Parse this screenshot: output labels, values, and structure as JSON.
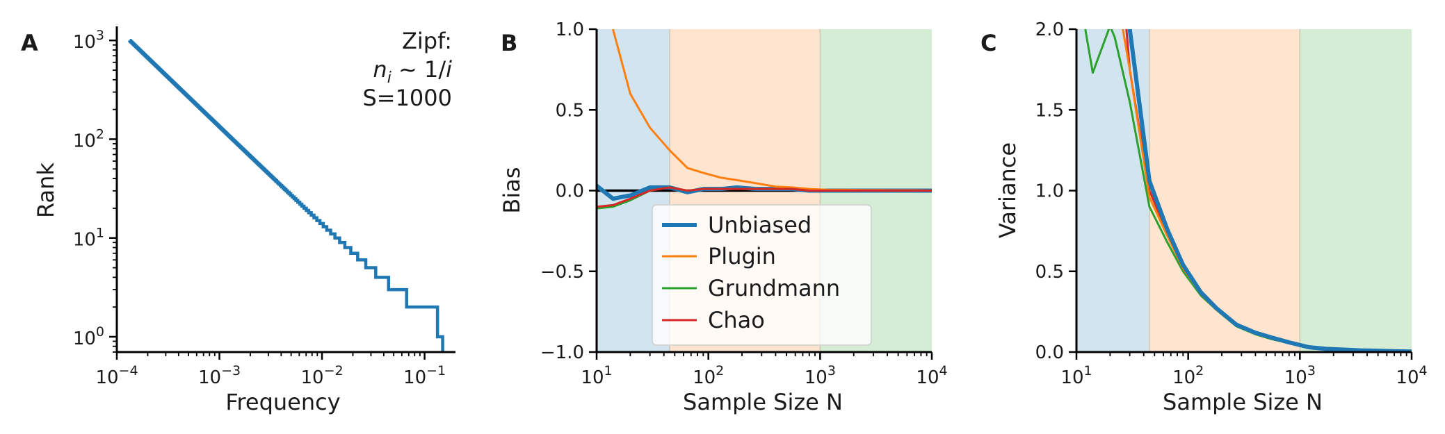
{
  "chart_data": [
    {
      "panel": "A",
      "type": "line",
      "xlabel": "Frequency",
      "ylabel": "Rank",
      "xscale": "log",
      "yscale": "log",
      "xlim": [
        0.0001,
        0.2
      ],
      "ylim": [
        0.7,
        1300
      ],
      "xticks": [
        0.0001,
        0.001,
        0.01,
        0.1
      ],
      "xtick_labels": [
        {
          "base": "10",
          "exp": "−4"
        },
        {
          "base": "10",
          "exp": "−3"
        },
        {
          "base": "10",
          "exp": "−2"
        },
        {
          "base": "10",
          "exp": "−1"
        }
      ],
      "yticks": [
        1,
        10,
        100,
        1000
      ],
      "ytick_labels": [
        {
          "base": "10",
          "exp": "0"
        },
        {
          "base": "10",
          "exp": "1"
        },
        {
          "base": "10",
          "exp": "2"
        },
        {
          "base": "10",
          "exp": "3"
        }
      ],
      "annotation": [
        "Zipf:",
        "n_i ~ 1/i",
        "S=1000"
      ],
      "distribution": {
        "S": 1000,
        "law": "n_i ~ 1/i"
      },
      "series": [
        {
          "color": "#1f77b4",
          "style": "steps-rank-frequency"
        }
      ]
    },
    {
      "panel": "B",
      "type": "line",
      "xlabel": "Sample Size N",
      "ylabel": "Bias",
      "xscale": "log",
      "xlim": [
        10,
        10000
      ],
      "ylim": [
        -1.0,
        1.0
      ],
      "xticks": [
        10,
        100,
        1000,
        10000
      ],
      "xtick_labels": [
        {
          "base": "10",
          "exp": "1"
        },
        {
          "base": "10",
          "exp": "2"
        },
        {
          "base": "10",
          "exp": "3"
        },
        {
          "base": "10",
          "exp": "4"
        }
      ],
      "yticks": [
        -1.0,
        -0.5,
        0.0,
        0.5,
        1.0
      ],
      "ytick_labels": [
        "−1.0",
        "−0.5",
        "0.0",
        "0.5",
        "1.0"
      ],
      "hline": 0,
      "regions": [
        {
          "from": 10,
          "to": 45,
          "color": "#1f77b4"
        },
        {
          "from": 45,
          "to": 1000,
          "color": "#ff7f0e"
        },
        {
          "from": 1000,
          "to": 10000,
          "color": "#2ca02c"
        }
      ],
      "legend": {
        "placement": "lower-center"
      },
      "series": [
        {
          "name": "Unbiased",
          "color": "#1f77b4",
          "x": [
            10,
            14,
            20,
            30,
            45,
            65,
            90,
            130,
            180,
            270,
            400,
            560,
            800,
            1200,
            1700,
            2500,
            3500,
            5000,
            7000,
            10000
          ],
          "y": [
            0.03,
            -0.05,
            -0.03,
            0.02,
            0.02,
            -0.01,
            0.01,
            0.01,
            0.02,
            0.01,
            0.01,
            0.01,
            0.0,
            0.0,
            0.0,
            0.0,
            0.0,
            0.0,
            0.0,
            0.0
          ]
        },
        {
          "name": "Plugin",
          "color": "#ff7f0e",
          "x": [
            14,
            20,
            30,
            45,
            65,
            90,
            130,
            180,
            270,
            400,
            560,
            800,
            1200,
            1700,
            2500,
            3500,
            5000,
            7000,
            10000
          ],
          "y": [
            1.0,
            0.6,
            0.39,
            0.25,
            0.14,
            0.11,
            0.08,
            0.065,
            0.045,
            0.025,
            0.02,
            0.01,
            0.005,
            0.005,
            0.003,
            0.003,
            0.002,
            0.002,
            0.0
          ]
        },
        {
          "name": "Grundmann",
          "color": "#2ca02c",
          "x": [
            10,
            14,
            20,
            30,
            45,
            65,
            90,
            130,
            180,
            270,
            400,
            560,
            800,
            1200,
            1700,
            2500,
            3500,
            5000,
            7000,
            10000
          ],
          "y": [
            -0.11,
            -0.1,
            -0.06,
            0.0,
            0.02,
            0.0,
            0.01,
            0.01,
            0.01,
            0.01,
            0.01,
            0.01,
            0.0,
            0.0,
            0.0,
            0.0,
            0.0,
            0.0,
            0.0,
            0.0
          ]
        },
        {
          "name": "Chao",
          "color": "#d62728",
          "x": [
            10,
            14,
            20,
            30,
            45,
            65,
            90,
            130,
            180,
            270,
            400,
            560,
            800,
            1200,
            1700,
            2500,
            3500,
            5000,
            7000,
            10000
          ],
          "y": [
            -0.1,
            -0.09,
            -0.05,
            0.0,
            0.02,
            0.0,
            0.01,
            0.01,
            0.01,
            0.01,
            0.01,
            0.01,
            0.0,
            0.0,
            0.0,
            0.0,
            0.0,
            0.0,
            0.0,
            0.0
          ]
        }
      ]
    },
    {
      "panel": "C",
      "type": "line",
      "xlabel": "Sample Size N",
      "ylabel": "Variance",
      "xscale": "log",
      "xlim": [
        10,
        10000
      ],
      "ylim": [
        0.0,
        2.0
      ],
      "xticks": [
        10,
        100,
        1000,
        10000
      ],
      "xtick_labels": [
        {
          "base": "10",
          "exp": "1"
        },
        {
          "base": "10",
          "exp": "2"
        },
        {
          "base": "10",
          "exp": "3"
        },
        {
          "base": "10",
          "exp": "4"
        }
      ],
      "yticks": [
        0.0,
        0.5,
        1.0,
        1.5,
        2.0
      ],
      "ytick_labels": [
        "0.0",
        "0.5",
        "1.0",
        "1.5",
        "2.0"
      ],
      "regions": [
        {
          "from": 10,
          "to": 45,
          "color": "#1f77b4"
        },
        {
          "from": 45,
          "to": 1000,
          "color": "#ff7f0e"
        },
        {
          "from": 1000,
          "to": 10000,
          "color": "#2ca02c"
        }
      ],
      "series": [
        {
          "name": "Chao",
          "color": "#d62728",
          "x": [
            28,
            30,
            45,
            65,
            90,
            130,
            180,
            270,
            400,
            560,
            800,
            1200,
            1700,
            2500,
            3500,
            5000,
            7000,
            10000
          ],
          "y": [
            2.0,
            1.75,
            1.0,
            0.74,
            0.53,
            0.37,
            0.27,
            0.17,
            0.12,
            0.09,
            0.06,
            0.03,
            0.02,
            0.015,
            0.01,
            0.008,
            0.005,
            0.003
          ]
        },
        {
          "name": "Grundmann",
          "color": "#2ca02c",
          "x": [
            12,
            14,
            20,
            22,
            30,
            45,
            65,
            90,
            130,
            180,
            270,
            400,
            560,
            800,
            1200,
            1700,
            2500,
            3500,
            5000,
            7000,
            10000
          ],
          "y": [
            2.0,
            1.73,
            2.02,
            1.95,
            1.55,
            0.9,
            0.68,
            0.5,
            0.35,
            0.26,
            0.16,
            0.11,
            0.08,
            0.055,
            0.03,
            0.02,
            0.015,
            0.01,
            0.008,
            0.005,
            0.003
          ]
        },
        {
          "name": "Plugin",
          "color": "#ff7f0e",
          "x": [
            26,
            30,
            45,
            65,
            90,
            130,
            180,
            270,
            400,
            560,
            800,
            1200,
            1700,
            2500,
            3500,
            5000,
            7000,
            10000
          ],
          "y": [
            2.0,
            1.75,
            0.96,
            0.72,
            0.52,
            0.36,
            0.26,
            0.17,
            0.12,
            0.09,
            0.06,
            0.03,
            0.02,
            0.015,
            0.01,
            0.008,
            0.005,
            0.003
          ]
        },
        {
          "name": "Unbiased",
          "color": "#1f77b4",
          "x": [
            30,
            45,
            65,
            90,
            130,
            180,
            270,
            400,
            560,
            800,
            1200,
            1700,
            2500,
            3500,
            5000,
            7000,
            10000
          ],
          "y": [
            2.0,
            1.06,
            0.76,
            0.54,
            0.37,
            0.27,
            0.17,
            0.12,
            0.09,
            0.06,
            0.03,
            0.02,
            0.015,
            0.01,
            0.008,
            0.005,
            0.003
          ]
        }
      ]
    }
  ]
}
